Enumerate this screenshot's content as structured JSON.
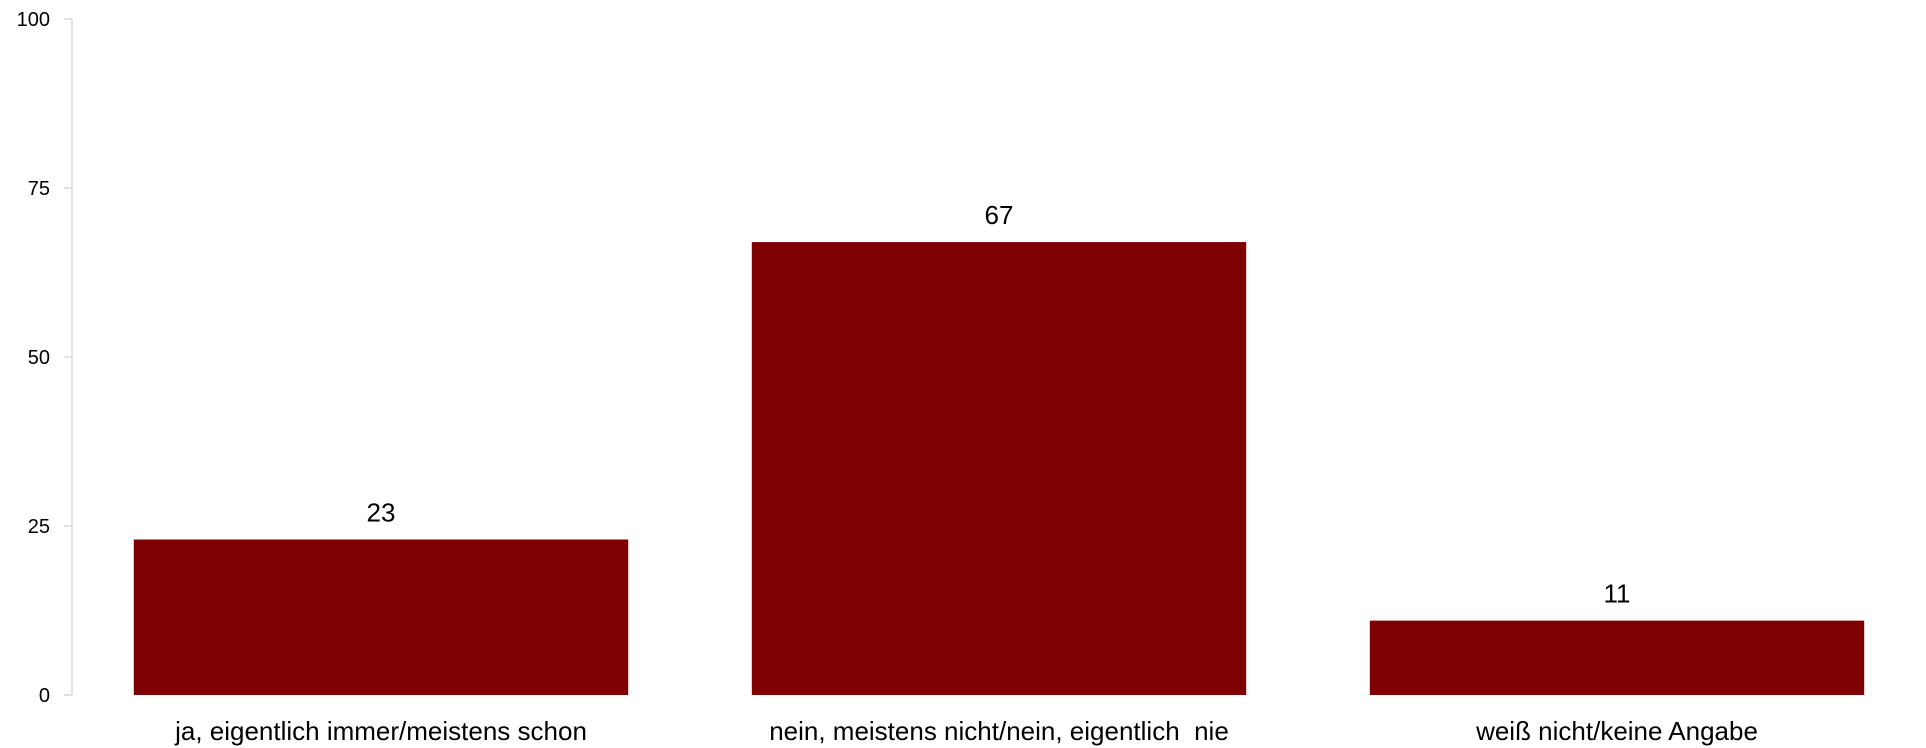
{
  "chart_data": {
    "type": "bar",
    "categories": [
      "ja, eigentlich immer/meistens schon",
      "nein, meistens nicht/nein, eigentlich  nie",
      "weiß nicht/keine Angabe"
    ],
    "values": [
      23,
      67,
      11
    ],
    "data_labels": [
      "23",
      "67",
      "11"
    ],
    "title": "",
    "xlabel": "",
    "ylabel": "",
    "ylim": [
      0,
      100
    ],
    "yticks": [
      0,
      25,
      50,
      75,
      100
    ],
    "grid": false,
    "legend": "none",
    "bar_color": "#7f0000",
    "axis_color": "#d9d9d9"
  }
}
